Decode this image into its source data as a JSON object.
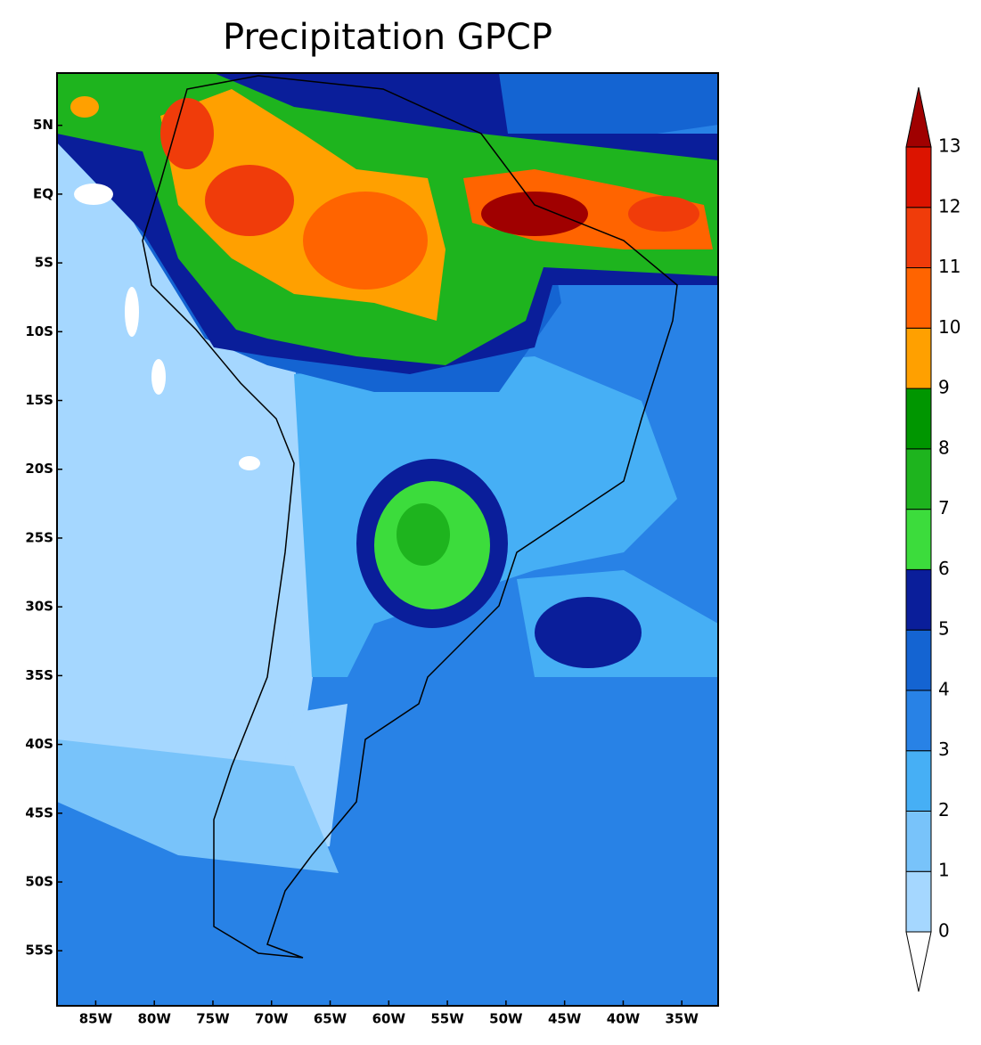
{
  "chart_data": {
    "type": "filled-contour",
    "title": "Precipitation GPCP",
    "xlim": [
      -88.3,
      -31.9
    ],
    "ylim": [
      -59,
      8.8
    ],
    "xticks": [
      {
        "value": -85,
        "label": "85W"
      },
      {
        "value": -80,
        "label": "80W"
      },
      {
        "value": -75,
        "label": "75W"
      },
      {
        "value": -70,
        "label": "70W"
      },
      {
        "value": -65,
        "label": "65W"
      },
      {
        "value": -60,
        "label": "60W"
      },
      {
        "value": -55,
        "label": "55W"
      },
      {
        "value": -50,
        "label": "50W"
      },
      {
        "value": -45,
        "label": "45W"
      },
      {
        "value": -40,
        "label": "40W"
      },
      {
        "value": -35,
        "label": "35W"
      }
    ],
    "yticks": [
      {
        "value": 5,
        "label": "5N"
      },
      {
        "value": 0,
        "label": "EQ"
      },
      {
        "value": -5,
        "label": "5S"
      },
      {
        "value": -10,
        "label": "10S"
      },
      {
        "value": -15,
        "label": "15S"
      },
      {
        "value": -20,
        "label": "20S"
      },
      {
        "value": -25,
        "label": "25S"
      },
      {
        "value": -30,
        "label": "30S"
      },
      {
        "value": -35,
        "label": "35S"
      },
      {
        "value": -40,
        "label": "40S"
      },
      {
        "value": -45,
        "label": "45S"
      },
      {
        "value": -50,
        "label": "50S"
      },
      {
        "value": -55,
        "label": "55S"
      }
    ],
    "colorbar": {
      "levels": [
        0,
        1,
        2,
        3,
        4,
        5,
        6,
        7,
        8,
        9,
        10,
        11,
        12,
        13
      ],
      "colors": [
        "#ffffff",
        "#a5d7ff",
        "#78c3fa",
        "#46aff5",
        "#2882e6",
        "#1464d2",
        "#0a1e9a",
        "#3cdc3c",
        "#1eb41e",
        "#009600",
        "#ffa000",
        "#ff6400",
        "#f03c0a",
        "#dc1400",
        "#a00000"
      ]
    }
  }
}
